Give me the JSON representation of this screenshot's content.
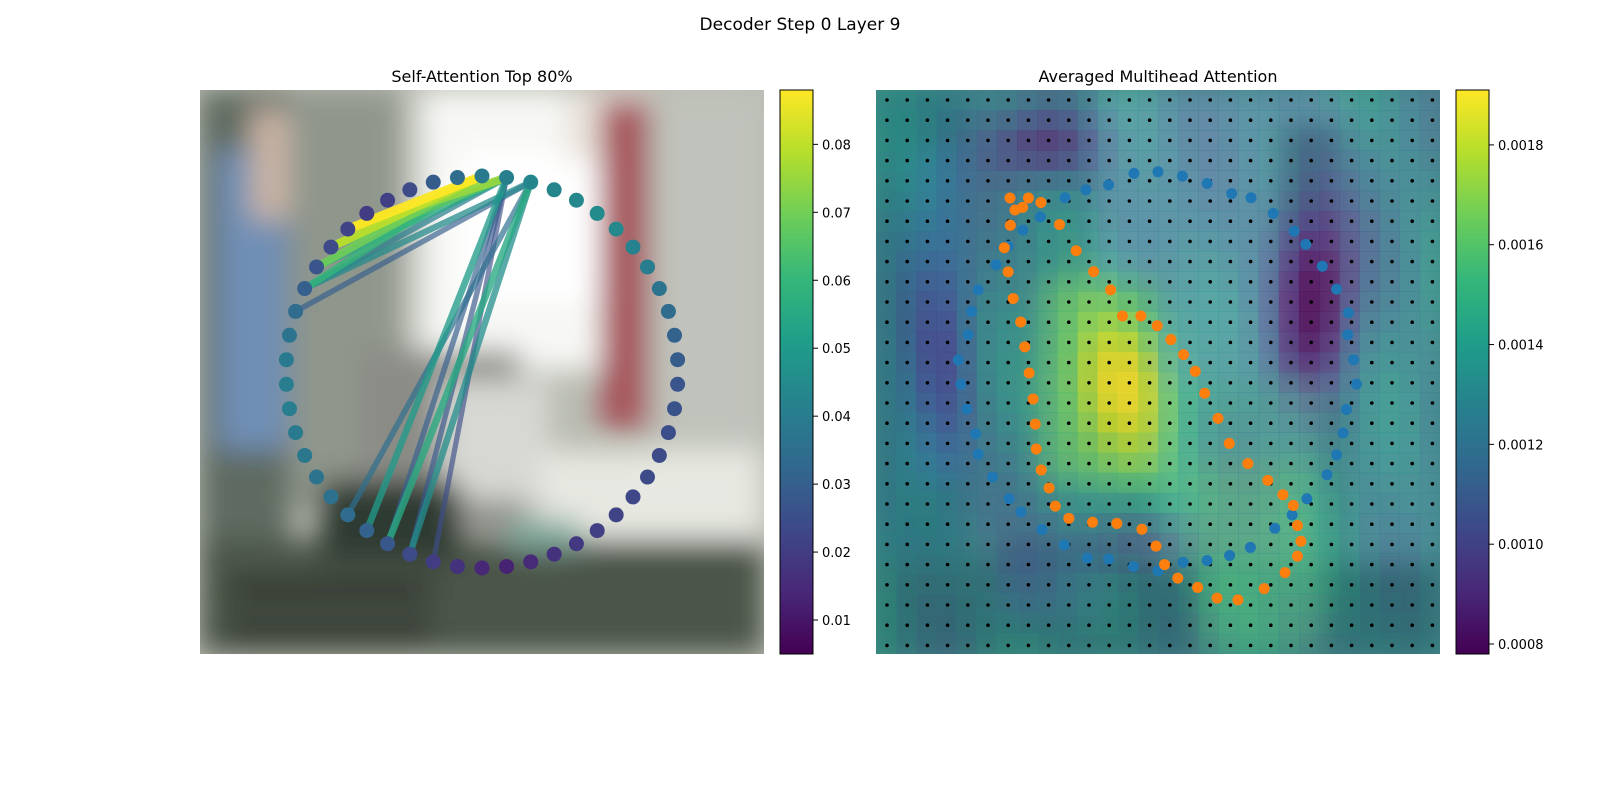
{
  "suptitle": "Decoder Step 0 Layer 9",
  "colormap": [
    "#440154",
    "#482878",
    "#3e4989",
    "#31688e",
    "#26828e",
    "#1f9e89",
    "#35b779",
    "#6ece58",
    "#b5de2b",
    "#fde725"
  ],
  "chart_data": [
    {
      "type": "scatter",
      "title": "Self-Attention Top 80%",
      "points": {
        "count": 50,
        "layout": "ring",
        "values": [
          0.039,
          0.041,
          0.043,
          0.043,
          0.044,
          0.045,
          0.044,
          0.042,
          0.04,
          0.037,
          0.034,
          0.031,
          0.029,
          0.027,
          0.026,
          0.025,
          0.024,
          0.024,
          0.023,
          0.022,
          0.021,
          0.019,
          0.017,
          0.015,
          0.013,
          0.014,
          0.017,
          0.02,
          0.024,
          0.028,
          0.031,
          0.034,
          0.036,
          0.037,
          0.038,
          0.039,
          0.04,
          0.04,
          0.039,
          0.037,
          0.034,
          0.03,
          0.027,
          0.024,
          0.022,
          0.02,
          0.021,
          0.024,
          0.029,
          0.034
        ]
      },
      "links": [
        {
          "from": 0,
          "to": 44,
          "weight": 0.088
        },
        {
          "from": 0,
          "to": 43,
          "weight": 0.08
        },
        {
          "from": 0,
          "to": 42,
          "weight": 0.07
        },
        {
          "from": 0,
          "to": 41,
          "weight": 0.06
        },
        {
          "from": 1,
          "to": 44,
          "weight": 0.075
        },
        {
          "from": 1,
          "to": 43,
          "weight": 0.066
        },
        {
          "from": 1,
          "to": 42,
          "weight": 0.054
        },
        {
          "from": 1,
          "to": 41,
          "weight": 0.04
        },
        {
          "from": 2,
          "to": 41,
          "weight": 0.045
        },
        {
          "from": 2,
          "to": 40,
          "weight": 0.03
        },
        {
          "from": 1,
          "to": 30,
          "weight": 0.05
        },
        {
          "from": 1,
          "to": 29,
          "weight": 0.03
        },
        {
          "from": 2,
          "to": 29,
          "weight": 0.055
        },
        {
          "from": 2,
          "to": 28,
          "weight": 0.046
        },
        {
          "from": 2,
          "to": 31,
          "weight": 0.035
        },
        {
          "from": 1,
          "to": 28,
          "weight": 0.028
        },
        {
          "from": 1,
          "to": 27,
          "weight": 0.025
        }
      ],
      "colorbar": {
        "min": 0.005,
        "max": 0.088,
        "ticks": [
          0.01,
          0.02,
          0.03,
          0.04,
          0.05,
          0.06,
          0.07,
          0.08
        ]
      }
    },
    {
      "type": "heatmap",
      "title": "Averaged Multihead Attention",
      "colorbar": {
        "min": 0.00078,
        "max": 0.00191,
        "ticks": [
          0.0008,
          0.001,
          0.0012,
          0.0014,
          0.0016,
          0.0018
        ]
      },
      "grid": {
        "rows": 28,
        "cols": 28
      },
      "series": [
        {
          "color": "#1f77b4",
          "shape": "outer-ring"
        },
        {
          "color": "#ff7f0e",
          "shape": "inner-figure"
        }
      ]
    }
  ]
}
